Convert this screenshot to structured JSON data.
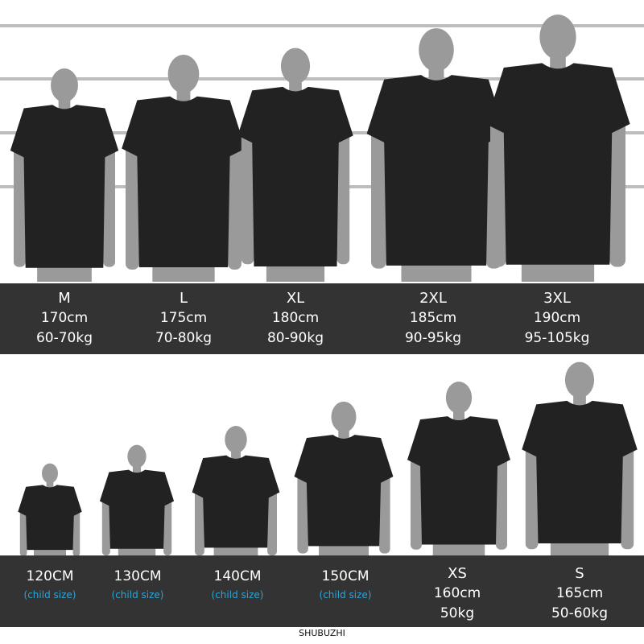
{
  "colors": {
    "band": "#333333",
    "shirt": "#222222",
    "silhouette": "#9a9a9a",
    "child_label": "#2fa4d6"
  },
  "adult_sizes": [
    {
      "size": "M",
      "height": "170cm",
      "weight": "60-70kg"
    },
    {
      "size": "L",
      "height": "175cm",
      "weight": "70-80kg"
    },
    {
      "size": "XL",
      "height": "180cm",
      "weight": "80-90kg"
    },
    {
      "size": "2XL",
      "height": "185cm",
      "weight": "90-95kg"
    },
    {
      "size": "3XL",
      "height": "190cm",
      "weight": "95-105kg"
    }
  ],
  "child_sizes": [
    {
      "size": "120CM",
      "note": "(child size)"
    },
    {
      "size": "130CM",
      "note": "(child size)"
    },
    {
      "size": "140CM",
      "note": "(child size)"
    },
    {
      "size": "150CM",
      "note": "(child size)"
    }
  ],
  "small_sizes": [
    {
      "size": "XS",
      "height": "160cm",
      "weight": "50kg"
    },
    {
      "size": "S",
      "height": "165cm",
      "weight": "50-60kg"
    }
  ],
  "brand": "SHUBUZHI"
}
